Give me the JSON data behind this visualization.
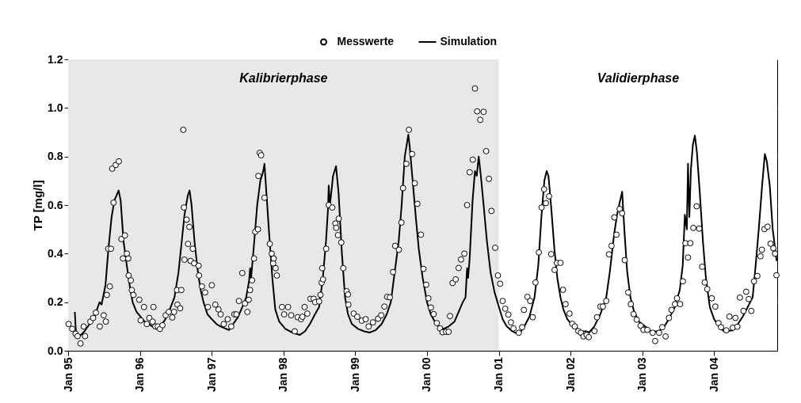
{
  "chart_data": {
    "type": "line",
    "ylabel": "TP [mg/l]",
    "xlim": [
      "1995-01-01",
      "2004-11-17"
    ],
    "xticks": [
      {
        "value": "1995-01-01",
        "label": "Jan 95"
      },
      {
        "value": "1996-01-01",
        "label": "Jan 96"
      },
      {
        "value": "1997-01-01",
        "label": "Jan 97"
      },
      {
        "value": "1998-01-01",
        "label": "Jan 98"
      },
      {
        "value": "1999-01-01",
        "label": "Jan 99"
      },
      {
        "value": "2000-01-01",
        "label": "Jan 00"
      },
      {
        "value": "2001-01-01",
        "label": "Jan 01"
      },
      {
        "value": "2002-01-01",
        "label": "Jan 02"
      },
      {
        "value": "2003-01-01",
        "label": "Jan 03"
      },
      {
        "value": "2004-01-01",
        "label": "Jan 04"
      }
    ],
    "ylim": [
      0,
      1.2
    ],
    "yticks": [
      {
        "value": 0,
        "label": "0.0"
      },
      0.2,
      0.4,
      0.6,
      0.8,
      {
        "value": 1,
        "label": "1.0"
      },
      1.2
    ],
    "grid": "y",
    "legend": "top",
    "bands": [
      {
        "axis": "x",
        "from": "1995-01-01",
        "to": "2001-01-01",
        "label": "Kalibrierphase",
        "color": "#e8e8e8"
      },
      {
        "axis": "x",
        "from": "2001-01-01",
        "to": "2004-11-17",
        "label": "Validierphase",
        "color": "#ffffff"
      }
    ],
    "series": [
      {
        "name": "Messwerte",
        "type": "scatter",
        "marker": "circle",
        "color": "#000000",
        "x": [
          "1995-01-03",
          "1995-01-22",
          "1995-02-08",
          "1995-02-18",
          "1995-03-05",
          "1995-03-21",
          "1995-03-28",
          "1995-04-24",
          "1995-05-08",
          "1995-05-22",
          "1995-06-11",
          "1995-07-01",
          "1995-07-12",
          "1995-07-17",
          "1995-07-24",
          "1995-08-01",
          "1995-08-07",
          "1995-08-13",
          "1995-08-20",
          "1995-08-31",
          "1995-09-16",
          "1995-09-29",
          "1995-10-07",
          "1995-10-17",
          "1995-10-27",
          "1995-11-03",
          "1995-11-05",
          "1995-11-16",
          "1995-11-21",
          "1995-11-29",
          "1995-12-29",
          "1996-01-05",
          "1996-01-22",
          "1996-02-05",
          "1996-02-18",
          "1996-03-06",
          "1996-03-10",
          "1996-03-20",
          "1996-04-01",
          "1996-04-12",
          "1996-04-25",
          "1996-05-11",
          "1996-05-27",
          "1996-06-14",
          "1996-06-23",
          "1996-07-08",
          "1996-07-10",
          "1996-07-24",
          "1996-07-30",
          "1996-08-09",
          "1996-08-12",
          "1996-08-15",
          "1996-08-26",
          "1996-09-02",
          "1996-09-09",
          "1996-09-15",
          "1996-09-26",
          "1996-10-03",
          "1996-10-26",
          "1996-10-28",
          "1996-11-12",
          "1996-11-28",
          "1996-12-12",
          "1997-01-01",
          "1997-01-19",
          "1997-02-04",
          "1997-02-15",
          "1997-03-03",
          "1997-03-23",
          "1997-04-10",
          "1997-04-26",
          "1997-05-06",
          "1997-05-19",
          "1997-06-05",
          "1997-06-19",
          "1997-07-01",
          "1997-07-08",
          "1997-07-15",
          "1997-07-25",
          "1997-08-04",
          "1997-08-10",
          "1997-08-24",
          "1997-08-26",
          "1997-09-02",
          "1997-09-09",
          "1997-09-26",
          "1997-10-23",
          "1997-11-02",
          "1997-11-09",
          "1997-11-12",
          "1997-11-22",
          "1997-11-28",
          "1997-12-24",
          "1998-01-04",
          "1998-01-24",
          "1998-02-09",
          "1998-02-27",
          "1998-03-14",
          "1998-03-31",
          "1998-04-07",
          "1998-04-18",
          "1998-05-02",
          "1998-05-18",
          "1998-06-03",
          "1998-06-11",
          "1998-07-01",
          "1998-07-08",
          "1998-07-14",
          "1998-07-17",
          "1998-07-21",
          "1998-08-06",
          "1998-08-19",
          "1998-09-06",
          "1998-09-22",
          "1998-09-26",
          "1998-10-05",
          "1998-10-09",
          "1998-10-22",
          "1998-11-01",
          "1998-11-18",
          "1998-11-25",
          "1998-11-27",
          "1998-12-24",
          "1999-01-11",
          "1999-02-03",
          "1999-02-23",
          "1999-03-10",
          "1999-04-01",
          "1999-04-27",
          "1999-05-13",
          "1999-05-29",
          "1999-06-12",
          "1999-06-26",
          "1999-07-12",
          "1999-07-23",
          "1999-08-11",
          "1999-08-24",
          "1999-09-01",
          "1999-09-18",
          "1999-10-01",
          "1999-10-17",
          "1999-10-31",
          "1999-11-13",
          "1999-12-01",
          "1999-12-14",
          "1999-12-28",
          "2000-01-08",
          "2000-01-21",
          "2000-02-04",
          "2000-02-20",
          "2000-03-07",
          "2000-03-20",
          "2000-04-07",
          "2000-04-20",
          "2000-04-27",
          "2000-05-10",
          "2000-05-26",
          "2000-06-10",
          "2000-06-22",
          "2000-07-09",
          "2000-07-23",
          "2000-08-05",
          "2000-08-21",
          "2000-09-01",
          "2000-09-12",
          "2000-09-28",
          "2000-10-15",
          "2000-10-28",
          "2000-11-11",
          "2000-11-24",
          "2000-12-13",
          "2000-12-27",
          "2001-01-07",
          "2001-01-20",
          "2001-02-02",
          "2001-02-18",
          "2001-03-03",
          "2001-03-16",
          "2001-04-12",
          "2001-04-29",
          "2001-05-08",
          "2001-05-26",
          "2001-06-09",
          "2001-06-22",
          "2001-07-06",
          "2001-07-23",
          "2001-08-06",
          "2001-08-19",
          "2001-08-28",
          "2001-09-13",
          "2001-09-24",
          "2001-10-11",
          "2001-10-23",
          "2001-11-10",
          "2001-11-23",
          "2001-12-06",
          "2001-12-26",
          "2002-01-09",
          "2002-01-22",
          "2002-02-09",
          "2002-02-22",
          "2002-03-07",
          "2002-03-23",
          "2002-04-03",
          "2002-05-02",
          "2002-05-15",
          "2002-06-01",
          "2002-06-14",
          "2002-07-01",
          "2002-07-15",
          "2002-07-28",
          "2002-08-11",
          "2002-08-22",
          "2002-09-07",
          "2002-09-20",
          "2002-10-03",
          "2002-10-21",
          "2002-11-03",
          "2002-11-17",
          "2002-12-03",
          "2002-12-23",
          "2003-01-06",
          "2003-01-26",
          "2003-02-22",
          "2003-03-07",
          "2003-03-27",
          "2003-04-12",
          "2003-04-29",
          "2003-05-16",
          "2003-05-29",
          "2003-06-16",
          "2003-06-26",
          "2003-07-12",
          "2003-07-26",
          "2003-08-08",
          "2003-08-21",
          "2003-09-02",
          "2003-09-17",
          "2003-10-04",
          "2003-10-17",
          "2003-11-01",
          "2003-11-14",
          "2003-11-27",
          "2003-12-20",
          "2004-01-07",
          "2004-01-23",
          "2004-02-05",
          "2004-03-03",
          "2004-03-19",
          "2004-04-05",
          "2004-04-18",
          "2004-04-28",
          "2004-05-11",
          "2004-05-29",
          "2004-06-12",
          "2004-06-25",
          "2004-07-08",
          "2004-07-22",
          "2004-08-08",
          "2004-08-24",
          "2004-08-31",
          "2004-09-13",
          "2004-09-29",
          "2004-10-14",
          "2004-10-28",
          "2004-11-06",
          "2004-11-13"
        ],
        "values": [
          0.11,
          0.09,
          0.07,
          0.06,
          0.03,
          0.1,
          0.06,
          0.12,
          0.135,
          0.157,
          0.1,
          0.146,
          0.12,
          0.23,
          0.42,
          0.265,
          0.42,
          0.75,
          0.61,
          0.765,
          0.78,
          0.46,
          0.38,
          0.475,
          0.4,
          0.38,
          0.31,
          0.29,
          0.25,
          0.23,
          0.21,
          0.125,
          0.18,
          0.11,
          0.135,
          0.12,
          0.18,
          0.1,
          0.1,
          0.09,
          0.105,
          0.146,
          0.16,
          0.137,
          0.16,
          0.25,
          0.19,
          0.175,
          0.25,
          0.91,
          0.59,
          0.375,
          0.54,
          0.44,
          0.51,
          0.37,
          0.42,
          0.36,
          0.35,
          0.31,
          0.265,
          0.24,
          0.18,
          0.27,
          0.19,
          0.17,
          0.15,
          0.11,
          0.13,
          0.1,
          0.15,
          0.15,
          0.205,
          0.32,
          0.195,
          0.16,
          0.21,
          0.25,
          0.29,
          0.38,
          0.49,
          0.5,
          0.72,
          0.815,
          0.805,
          0.63,
          0.44,
          0.4,
          0.36,
          0.38,
          0.34,
          0.31,
          0.18,
          0.15,
          0.18,
          0.146,
          0.08,
          0.138,
          0.13,
          0.14,
          0.18,
          0.153,
          0.214,
          0.214,
          0.2,
          0.203,
          0.23,
          0.28,
          0.34,
          0.294,
          0.42,
          0.6,
          0.59,
          0.524,
          0.506,
          0.476,
          0.544,
          0.446,
          0.34,
          0.245,
          0.232,
          0.19,
          0.153,
          0.14,
          0.124,
          0.13,
          0.1,
          0.117,
          0.132,
          0.146,
          0.182,
          0.222,
          0.22,
          0.324,
          0.432,
          0.416,
          0.528,
          0.67,
          0.77,
          0.91,
          0.81,
          0.69,
          0.605,
          0.478,
          0.337,
          0.272,
          0.216,
          0.178,
          0.151,
          0.114,
          0.092,
          0.076,
          0.078,
          0.078,
          0.143,
          0.279,
          0.294,
          0.341,
          0.376,
          0.4,
          0.6,
          0.735,
          0.787,
          1.08,
          0.986,
          0.951,
          0.984,
          0.822,
          0.708,
          0.576,
          0.424,
          0.31,
          0.276,
          0.205,
          0.173,
          0.149,
          0.117,
          0.092,
          0.074,
          0.097,
          0.168,
          0.222,
          0.205,
          0.138,
          0.281,
          0.405,
          0.59,
          0.665,
          0.608,
          0.636,
          0.398,
          0.333,
          0.362,
          0.362,
          0.251,
          0.192,
          0.153,
          0.111,
          0.1,
          0.081,
          0.074,
          0.059,
          0.065,
          0.056,
          0.081,
          0.138,
          0.182,
          0.182,
          0.205,
          0.397,
          0.432,
          0.549,
          0.478,
          0.584,
          0.566,
          0.373,
          0.24,
          0.192,
          0.151,
          0.128,
          0.103,
          0.086,
          0.086,
          0.074,
          0.04,
          0.074,
          0.097,
          0.059,
          0.135,
          0.168,
          0.192,
          0.216,
          0.192,
          0.286,
          0.443,
          0.384,
          0.443,
          0.506,
          0.595,
          0.503,
          0.346,
          0.281,
          0.254,
          0.216,
          0.182,
          0.114,
          0.097,
          0.084,
          0.141,
          0.095,
          0.135,
          0.099,
          0.219,
          0.164,
          0.243,
          0.213,
          0.164,
          0.286,
          0.308,
          0.389,
          0.416,
          0.501,
          0.511,
          0.441,
          0.422,
          0.4,
          0.311
        ]
      },
      {
        "name": "Simulation",
        "line_style": "solid",
        "color": "#000000",
        "x": [
          "1995-02-04",
          "1995-02-10",
          "1995-03-01",
          "1995-03-25",
          "1995-04-20",
          "1995-05-15",
          "1995-06-01",
          "1995-06-10",
          "1995-06-20",
          "1995-07-10",
          "1995-07-25",
          "1995-08-10",
          "1995-08-25",
          "1995-09-15",
          "1995-09-25",
          "1995-10-10",
          "1995-10-25",
          "1995-11-10",
          "1995-11-25",
          "1995-12-15",
          "1996-01-05",
          "1996-01-25",
          "1996-02-15",
          "1996-03-05",
          "1996-03-25",
          "1996-04-15",
          "1996-05-10",
          "1996-06-01",
          "1996-06-25",
          "1996-07-15",
          "1996-08-01",
          "1996-08-15",
          "1996-09-01",
          "1996-09-10",
          "1996-09-20",
          "1996-10-05",
          "1996-10-20",
          "1996-11-05",
          "1996-11-20",
          "1996-12-10",
          "1997-01-01",
          "1997-01-25",
          "1997-02-15",
          "1997-03-29",
          "1997-04-20",
          "1997-05-15",
          "1997-06-05",
          "1997-06-25",
          "1997-07-10",
          "1997-07-15",
          "1997-07-20",
          "1997-08-05",
          "1997-08-20",
          "1997-09-05",
          "1997-09-20",
          "1997-09-26",
          "1997-10-05",
          "1997-10-20",
          "1997-11-05",
          "1997-11-20",
          "1997-12-10",
          "1998-01-10",
          "1998-02-15",
          "1998-03-24",
          "1998-04-20",
          "1998-05-15",
          "1998-06-10",
          "1998-07-01",
          "1998-07-20",
          "1998-08-05",
          "1998-08-15",
          "1998-08-19",
          "1998-08-25",
          "1998-09-10",
          "1998-09-25",
          "1998-10-08",
          "1998-10-25",
          "1998-11-10",
          "1998-11-25",
          "1998-12-15",
          "1999-01-15",
          "1999-02-15",
          "1999-03-15",
          "1999-04-15",
          "1999-05-15",
          "1999-06-10",
          "1999-07-01",
          "1999-07-20",
          "1999-08-10",
          "1999-08-25",
          "1999-09-10",
          "1999-09-20",
          "1999-09-28",
          "1999-10-05",
          "1999-10-20",
          "1999-11-05",
          "1999-11-20",
          "1999-12-10",
          "2000-01-01",
          "2000-01-20",
          "2000-02-10",
          "2000-03-01",
          "2000-03-25",
          "2000-04-20",
          "2000-05-20",
          "2000-06-10",
          "2000-07-01",
          "2000-07-15",
          "2000-07-23",
          "2000-07-28",
          "2000-08-05",
          "2000-08-20",
          "2000-09-01",
          "2000-09-10",
          "2000-09-20",
          "2000-10-01",
          "2000-10-15",
          "2000-11-01",
          "2000-11-20",
          "2000-12-10",
          "2001-01-01",
          "2001-01-20",
          "2001-02-10",
          "2001-03-10",
          "2001-04-12",
          "2001-05-10",
          "2001-06-05",
          "2001-07-01",
          "2001-07-20",
          "2001-08-05",
          "2001-08-20",
          "2001-09-01",
          "2001-09-10",
          "2001-09-25",
          "2001-10-10",
          "2001-10-25",
          "2001-11-10",
          "2001-11-25",
          "2001-12-15",
          "2002-01-15",
          "2002-02-15",
          "2002-03-20",
          "2002-04-05",
          "2002-05-01",
          "2002-06-01",
          "2002-07-01",
          "2002-07-20",
          "2002-08-10",
          "2002-08-25",
          "2002-09-10",
          "2002-09-20",
          "2002-10-01",
          "2002-10-15",
          "2002-11-01",
          "2002-11-20",
          "2002-12-15",
          "2003-01-15",
          "2003-02-15",
          "2003-03-20",
          "2003-04-15",
          "2003-05-15",
          "2003-06-15",
          "2003-07-10",
          "2003-07-25",
          "2003-08-05",
          "2003-08-15",
          "2003-08-21",
          "2003-08-28",
          "2003-09-05",
          "2003-09-15",
          "2003-09-25",
          "2003-10-05",
          "2003-10-20",
          "2003-11-05",
          "2003-11-20",
          "2003-12-10",
          "2004-01-01",
          "2004-01-25",
          "2004-02-20",
          "2004-04-04",
          "2004-05-01",
          "2004-05-25",
          "2004-06-20",
          "2004-07-15",
          "2004-07-30",
          "2004-08-15",
          "2004-09-01",
          "2004-09-15",
          "2004-09-25",
          "2004-10-10",
          "2004-10-25",
          "2004-11-14"
        ],
        "values": [
          0.16,
          0.07,
          0.06,
          0.08,
          0.11,
          0.14,
          0.18,
          0.2,
          0.19,
          0.27,
          0.42,
          0.55,
          0.62,
          0.66,
          0.62,
          0.45,
          0.36,
          0.27,
          0.2,
          0.16,
          0.14,
          0.12,
          0.11,
          0.1,
          0.09,
          0.1,
          0.13,
          0.17,
          0.22,
          0.32,
          0.45,
          0.56,
          0.64,
          0.66,
          0.6,
          0.45,
          0.34,
          0.25,
          0.2,
          0.15,
          0.13,
          0.11,
          0.1,
          0.085,
          0.11,
          0.14,
          0.18,
          0.22,
          0.29,
          0.34,
          0.3,
          0.45,
          0.6,
          0.7,
          0.74,
          0.77,
          0.66,
          0.48,
          0.3,
          0.17,
          0.12,
          0.09,
          0.075,
          0.065,
          0.08,
          0.11,
          0.15,
          0.18,
          0.3,
          0.45,
          0.58,
          0.68,
          0.6,
          0.72,
          0.76,
          0.65,
          0.4,
          0.22,
          0.15,
          0.11,
          0.09,
          0.08,
          0.075,
          0.085,
          0.11,
          0.15,
          0.2,
          0.32,
          0.45,
          0.6,
          0.8,
          0.85,
          0.89,
          0.84,
          0.7,
          0.55,
          0.42,
          0.3,
          0.2,
          0.15,
          0.12,
          0.1,
          0.09,
          0.1,
          0.12,
          0.16,
          0.2,
          0.22,
          0.34,
          0.3,
          0.38,
          0.62,
          0.74,
          0.72,
          0.8,
          0.72,
          0.6,
          0.45,
          0.32,
          0.24,
          0.18,
          0.13,
          0.1,
          0.08,
          0.067,
          0.1,
          0.14,
          0.22,
          0.35,
          0.55,
          0.7,
          0.74,
          0.72,
          0.58,
          0.42,
          0.3,
          0.22,
          0.17,
          0.13,
          0.1,
          0.08,
          0.08,
          0.075,
          0.1,
          0.15,
          0.22,
          0.33,
          0.48,
          0.56,
          0.62,
          0.655,
          0.5,
          0.33,
          0.22,
          0.16,
          0.12,
          0.1,
          0.08,
          0.08,
          0.09,
          0.13,
          0.18,
          0.25,
          0.35,
          0.56,
          0.5,
          0.77,
          0.55,
          0.75,
          0.85,
          0.886,
          0.82,
          0.65,
          0.45,
          0.3,
          0.18,
          0.13,
          0.1,
          0.08,
          0.084,
          0.11,
          0.14,
          0.18,
          0.22,
          0.35,
          0.5,
          0.68,
          0.81,
          0.78,
          0.68,
          0.5,
          0.37
        ]
      }
    ]
  }
}
